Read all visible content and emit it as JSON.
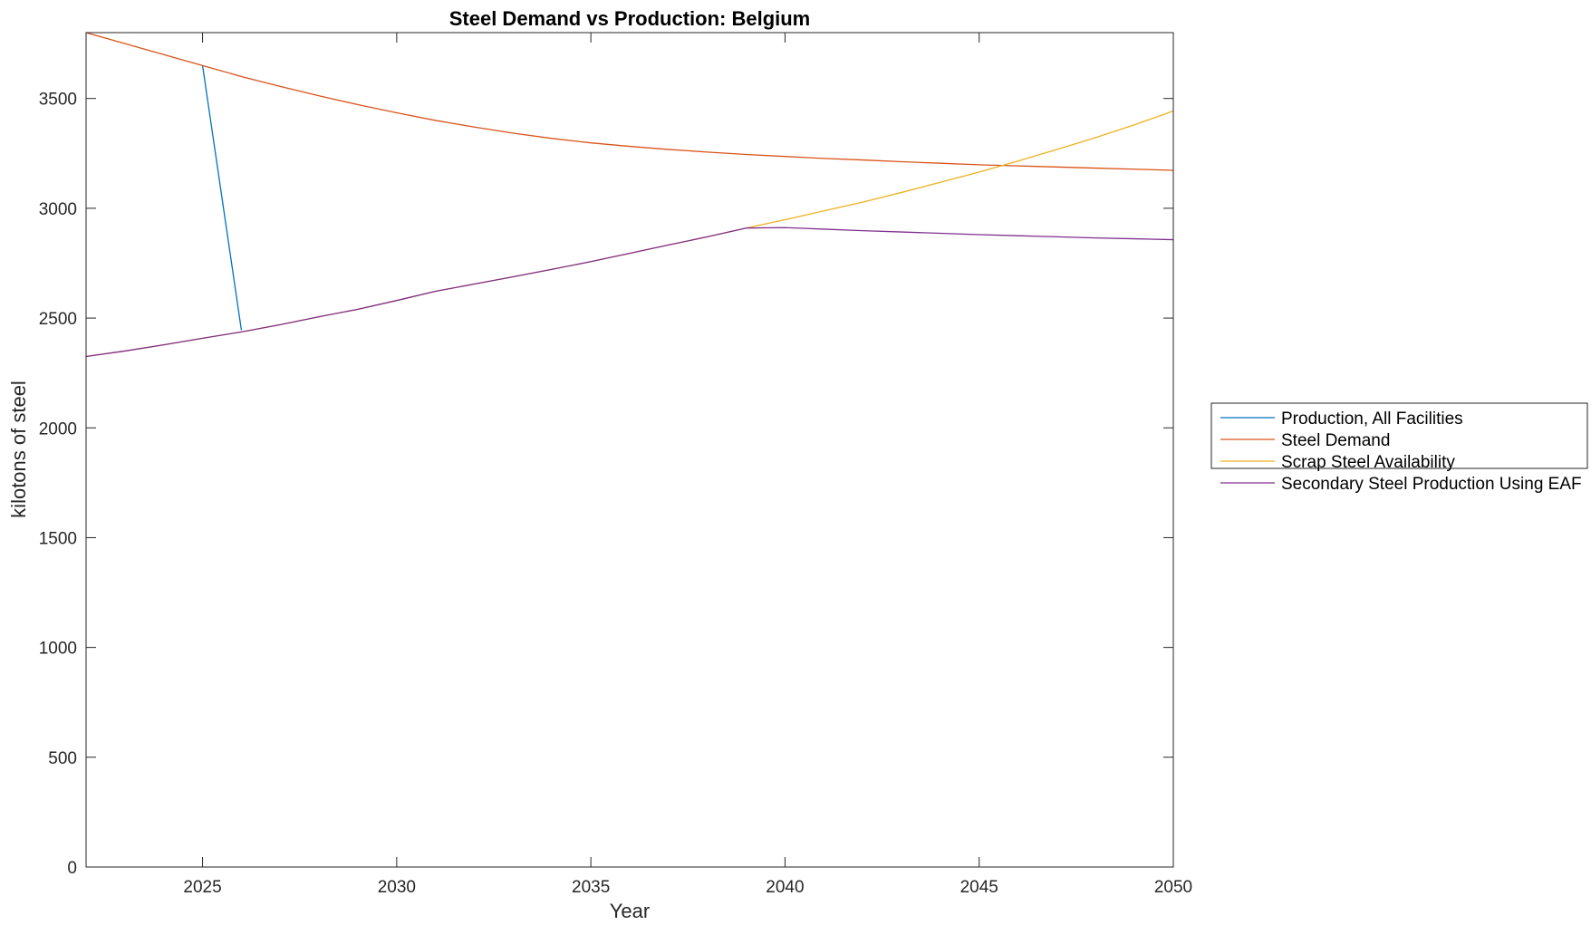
{
  "chart_data": {
    "type": "line",
    "title": "Steel Demand vs Production: Belgium",
    "xlabel": "Year",
    "ylabel": "kilotons of steel",
    "xlim": [
      2022,
      2050
    ],
    "ylim": [
      0,
      3800
    ],
    "xticks": [
      2025,
      2030,
      2035,
      2040,
      2045,
      2050
    ],
    "yticks": [
      0,
      500,
      1000,
      1500,
      2000,
      2500,
      3000,
      3500
    ],
    "grid": false,
    "legend_position": "outside-right",
    "series": [
      {
        "name": "Production, All Facilities",
        "color": "#0072BD",
        "x": [
          2025,
          2026
        ],
        "y": [
          3650,
          2445
        ]
      },
      {
        "name": "Steel Demand",
        "color": "#D95319",
        "x": [
          2022,
          2023,
          2024,
          2025,
          2026,
          2027,
          2028,
          2029,
          2030,
          2031,
          2032,
          2033,
          2034,
          2035,
          2036,
          2037,
          2038,
          2039,
          2040,
          2041,
          2042,
          2043,
          2044,
          2045,
          2046,
          2047,
          2048,
          2049,
          2050
        ],
        "y": [
          3800,
          3750,
          3700,
          3650,
          3600,
          3555,
          3512,
          3472,
          3435,
          3400,
          3370,
          3342,
          3318,
          3298,
          3282,
          3268,
          3256,
          3245,
          3236,
          3227,
          3220,
          3212,
          3205,
          3198,
          3193,
          3188,
          3183,
          3178,
          3173
        ]
      },
      {
        "name": "Scrap Steel Availability",
        "color": "#EDB120",
        "x": [
          2022,
          2023,
          2024,
          2025,
          2026,
          2027,
          2028,
          2029,
          2030,
          2031,
          2032,
          2033,
          2034,
          2035,
          2036,
          2037,
          2038,
          2039,
          2040,
          2041,
          2042,
          2043,
          2044,
          2045,
          2046,
          2047,
          2048,
          2049,
          2050
        ],
        "y": [
          2325,
          2350,
          2378,
          2408,
          2437,
          2470,
          2506,
          2540,
          2580,
          2622,
          2655,
          2688,
          2722,
          2757,
          2795,
          2833,
          2870,
          2910,
          2948,
          2988,
          3028,
          3072,
          3118,
          3165,
          3215,
          3268,
          3322,
          3380,
          3443
        ]
      },
      {
        "name": "Secondary Steel Production Using EAF",
        "color": "#7E2F8E",
        "x": [
          2022,
          2023,
          2024,
          2025,
          2026,
          2027,
          2028,
          2029,
          2030,
          2031,
          2032,
          2033,
          2034,
          2035,
          2036,
          2037,
          2038,
          2039,
          2040,
          2041,
          2042,
          2043,
          2044,
          2045,
          2046,
          2047,
          2048,
          2049,
          2050
        ],
        "y": [
          2325,
          2350,
          2378,
          2408,
          2437,
          2470,
          2506,
          2540,
          2580,
          2622,
          2655,
          2688,
          2722,
          2757,
          2795,
          2833,
          2870,
          2910,
          2912,
          2905,
          2898,
          2892,
          2886,
          2880,
          2875,
          2870,
          2865,
          2861,
          2857
        ]
      }
    ]
  }
}
